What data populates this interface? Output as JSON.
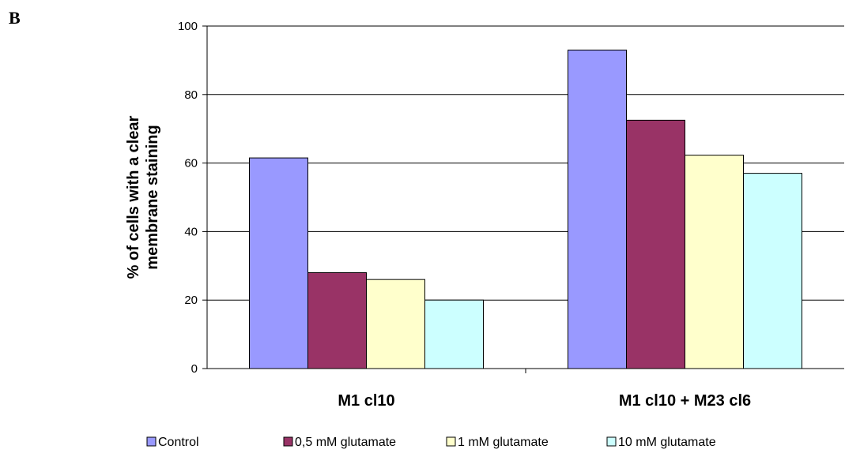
{
  "panel_label": "B",
  "chart_data": {
    "type": "bar",
    "title": "",
    "xlabel": "",
    "ylabel": [
      "% of cells with a clear",
      "membrane staining"
    ],
    "ylim": [
      0,
      100
    ],
    "yticks": [
      0,
      20,
      40,
      60,
      80,
      100
    ],
    "grid": "horizontal",
    "legend_position": "bottom",
    "categories": [
      "M1 cl10",
      "M1 cl10 + M23 cl6"
    ],
    "series": [
      {
        "name": "Control",
        "color": "#9999ff",
        "values": [
          61.5,
          93
        ]
      },
      {
        "name": "0,5 mM glutamate",
        "color": "#993366",
        "values": [
          28,
          72.5
        ]
      },
      {
        "name": "1 mM glutamate",
        "color": "#ffffcc",
        "values": [
          26,
          62.3
        ]
      },
      {
        "name": "10 mM glutamate",
        "color": "#ccffff",
        "values": [
          20,
          57
        ]
      }
    ]
  }
}
